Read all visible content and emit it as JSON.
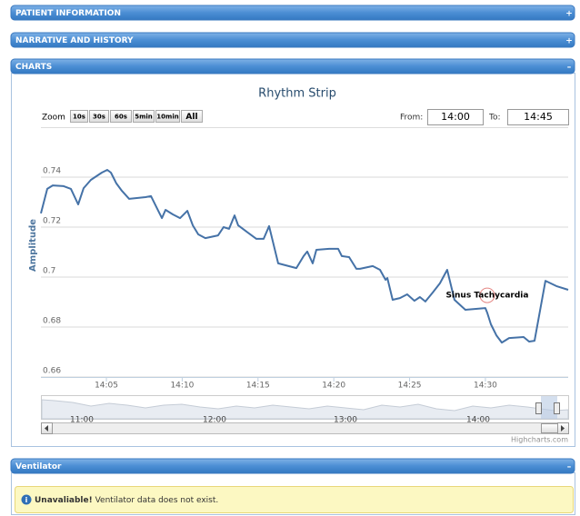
{
  "panels": [
    {
      "title": "PATIENT INFORMATION",
      "toggle": "+"
    },
    {
      "title": "NARRATIVE AND HISTORY",
      "toggle": "+"
    },
    {
      "title": "CHARTS",
      "toggle": "–"
    },
    {
      "title": "Ventilator",
      "toggle": "–"
    }
  ],
  "alert": {
    "strong": "Unavaliable!",
    "text": "Ventilator data does not exist."
  },
  "chart_data": {
    "type": "line",
    "title": "Rhythm Strip",
    "y_label": "Amplitude",
    "zoom_label": "Zoom",
    "zoom_buttons": [
      "10s",
      "30s",
      "60s",
      "5min",
      "10min",
      "All"
    ],
    "from_label": "From:",
    "from": "14:00",
    "to_label": "To:",
    "to": "14:45",
    "x": [
      840.68,
      841.1,
      841.46,
      842.18,
      842.66,
      843.14,
      843.5,
      843.98,
      844.7,
      845.06,
      845.3,
      845.66,
      846.02,
      846.5,
      847.58,
      847.94,
      848.42,
      848.66,
      848.9,
      849.38,
      849.86,
      850.34,
      850.7,
      851.06,
      851.53,
      852.37,
      852.73,
      853.09,
      853.45,
      853.69,
      854.17,
      854.89,
      855.37,
      855.73,
      856.33,
      857.53,
      858.01,
      858.25,
      858.61,
      858.85,
      859.69,
      860.29,
      860.53,
      861.01,
      861.49,
      861.73,
      862.57,
      863.05,
      863.41,
      863.53,
      863.88,
      864.36,
      864.84,
      865.32,
      865.68,
      866.04,
      866.52,
      867.0,
      867.48,
      867.96,
      868.68,
      870.0,
      870.12,
      870.36,
      870.72,
      871.08,
      871.56,
      872.52,
      872.88,
      873.24,
      873.96,
      874.68,
      875.46
    ],
    "series": [
      {
        "color": "#4572a7",
        "values": [
          0.7255,
          0.7353,
          0.7367,
          0.7364,
          0.7353,
          0.7291,
          0.7356,
          0.7389,
          0.7418,
          0.7429,
          0.7418,
          0.7375,
          0.7345,
          0.7313,
          0.732,
          0.7324,
          0.7265,
          0.7236,
          0.7269,
          0.7251,
          0.7236,
          0.7265,
          0.7207,
          0.7171,
          0.7156,
          0.7167,
          0.72,
          0.7193,
          0.7247,
          0.7207,
          0.7185,
          0.7153,
          0.7153,
          0.7204,
          0.7055,
          0.7036,
          0.7084,
          0.7102,
          0.7055,
          0.7109,
          0.7113,
          0.7113,
          0.7084,
          0.708,
          0.7033,
          0.7033,
          0.7044,
          0.7029,
          0.6989,
          0.6996,
          0.6909,
          0.6916,
          0.6931,
          0.6905,
          0.692,
          0.6902,
          0.6938,
          0.6975,
          0.7029,
          0.6909,
          0.6869,
          0.6876,
          0.6858,
          0.6811,
          0.6767,
          0.6738,
          0.6756,
          0.676,
          0.6742,
          0.6745,
          0.6985,
          0.6964,
          0.6949
        ]
      }
    ],
    "annotation": {
      "text": "Sinus Tachycardia",
      "x": 870.12,
      "y": 0.6927
    },
    "xlim": [
      840.68,
      875.46
    ],
    "ylim": [
      0.66,
      0.76
    ],
    "yticks": [
      0.66,
      0.68,
      0.7,
      0.72,
      0.74
    ],
    "xticks": [
      {
        "value": 845,
        "label": "14:05"
      },
      {
        "value": 850,
        "label": "14:10"
      },
      {
        "value": 855,
        "label": "14:15"
      },
      {
        "value": 860,
        "label": "14:20"
      },
      {
        "value": 865,
        "label": "14:25"
      },
      {
        "value": 870,
        "label": "14:30"
      }
    ],
    "grid": true,
    "navigator_labels": [
      "11:00",
      "12:00",
      "13:00",
      "14:00"
    ],
    "credit": "Highcharts.com"
  }
}
